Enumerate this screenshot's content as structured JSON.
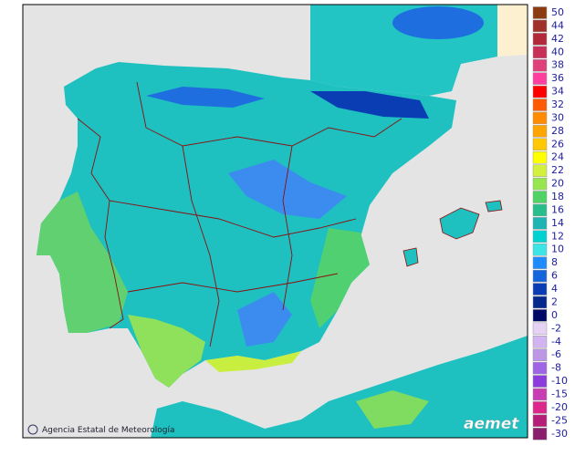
{
  "legend": {
    "items": [
      {
        "value": 50,
        "color": "#8c3a10"
      },
      {
        "value": 44,
        "color": "#a0302a"
      },
      {
        "value": 42,
        "color": "#b22a3a"
      },
      {
        "value": 40,
        "color": "#c8305a"
      },
      {
        "value": 38,
        "color": "#e0407a"
      },
      {
        "value": 36,
        "color": "#ff3fa0"
      },
      {
        "value": 34,
        "color": "#ff0000"
      },
      {
        "value": 32,
        "color": "#ff5a00"
      },
      {
        "value": 30,
        "color": "#ff8c00"
      },
      {
        "value": 28,
        "color": "#ffa500"
      },
      {
        "value": 26,
        "color": "#ffc800"
      },
      {
        "value": 24,
        "color": "#ffff00"
      },
      {
        "value": 22,
        "color": "#d2f03c"
      },
      {
        "value": 20,
        "color": "#96e650"
      },
      {
        "value": 18,
        "color": "#50d264"
      },
      {
        "value": 16,
        "color": "#28be8c"
      },
      {
        "value": 14,
        "color": "#1eb4b4"
      },
      {
        "value": 12,
        "color": "#00d2d2"
      },
      {
        "value": 10,
        "color": "#3ce6e6"
      },
      {
        "value": 8,
        "color": "#1e8cff"
      },
      {
        "value": 6,
        "color": "#1464dc"
      },
      {
        "value": 4,
        "color": "#0a3cb4"
      },
      {
        "value": 2,
        "color": "#05288c"
      },
      {
        "value": 0,
        "color": "#000a64"
      },
      {
        "value": -2,
        "color": "#e6d2f5"
      },
      {
        "value": -4,
        "color": "#d2b4f0"
      },
      {
        "value": -6,
        "color": "#be96e6"
      },
      {
        "value": -8,
        "color": "#a064e6"
      },
      {
        "value": -10,
        "color": "#8c3cdc"
      },
      {
        "value": -15,
        "color": "#c83cb4"
      },
      {
        "value": -20,
        "color": "#dc288c"
      },
      {
        "value": -25,
        "color": "#b41e78"
      },
      {
        "value": -30,
        "color": "#8c1e6e"
      }
    ]
  },
  "footer": {
    "credit": "Agencia Estatal de Meteorología",
    "logo": "aemet"
  }
}
